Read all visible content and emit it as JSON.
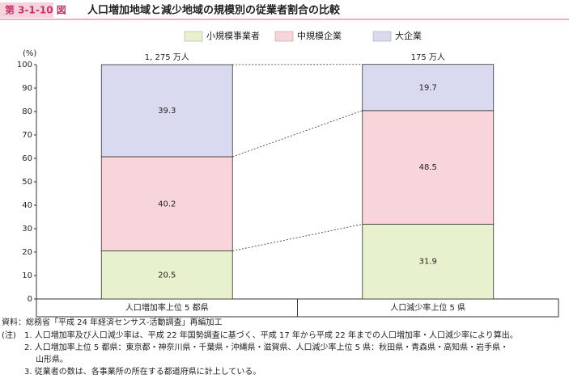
{
  "chart_data": {
    "type": "stacked_bar",
    "figure_number": "第 3-1-10 図",
    "title": "人口増加地域と減少地域の規模別の従業者割合の比較",
    "ylabel": "(%)",
    "categories": [
      "人口増加率上位 5 都県",
      "人口減少率上位 5 県"
    ],
    "bar_totals": [
      "1, 275 万人",
      "175 万人"
    ],
    "series": [
      {
        "name": "小規模事業者",
        "color": "#e7f1cd",
        "values": [
          20.5,
          31.9
        ]
      },
      {
        "name": "中規模企業",
        "color": "#f7d5db",
        "values": [
          40.2,
          48.5
        ]
      },
      {
        "name": "大企業",
        "color": "#d9daef",
        "values": [
          39.3,
          19.7
        ]
      }
    ],
    "ylim": [
      0,
      100
    ],
    "yticks": [
      0,
      10,
      20,
      30,
      40,
      50,
      60,
      70,
      80,
      90,
      100
    ],
    "source": "資料：総務省「平成 24 年経済センサス‐活動調査」再編加工",
    "notes_label": "(注)",
    "notes": [
      [
        "1.  人口増加率及び人口減少率は、平成 22 年国勢調査に基づく、平成 17 年から平成 22 年までの人口増加率・人口減少率により算出。"
      ],
      [
        "2.  人口増加率上位 5 都県：東京都・神奈川県・千葉県・沖縄県・滋賀県、人口減少率上位 5 県：秋田県・青森県・高知県・岩手県・",
        "山形県。"
      ],
      [
        "3.  従業者の数は、各事業所の所在する都道府県に計上している。"
      ]
    ]
  }
}
